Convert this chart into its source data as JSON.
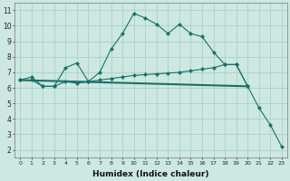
{
  "background_color": "#cce8e0",
  "grid_color": "#aacfc8",
  "line_color": "#1a7068",
  "xlabel": "Humidex (Indice chaleur)",
  "xlim": [
    -0.5,
    23.5
  ],
  "ylim": [
    1.5,
    11.5
  ],
  "xticks": [
    0,
    1,
    2,
    3,
    4,
    5,
    6,
    7,
    8,
    9,
    10,
    11,
    12,
    13,
    14,
    15,
    16,
    17,
    18,
    19,
    20,
    21,
    22,
    23
  ],
  "yticks": [
    2,
    3,
    4,
    5,
    6,
    7,
    8,
    9,
    10,
    11
  ],
  "series1_x": [
    0,
    1,
    2,
    3,
    4,
    5,
    6,
    7,
    8,
    9,
    10,
    11,
    12,
    13,
    14,
    15,
    16,
    17,
    18,
    19,
    20,
    21,
    22,
    23
  ],
  "series1_y": [
    6.5,
    6.7,
    6.1,
    6.1,
    7.3,
    7.6,
    6.4,
    7.0,
    8.5,
    9.5,
    10.8,
    10.5,
    10.1,
    9.5,
    10.1,
    9.5,
    9.3,
    8.3,
    7.5,
    7.5,
    6.1,
    4.7,
    3.6,
    2.2
  ],
  "series2_x": [
    0,
    1,
    2,
    3,
    4,
    5,
    6,
    7,
    8,
    9,
    10,
    11,
    12,
    13,
    14,
    15,
    16,
    17,
    18,
    19,
    20
  ],
  "series2_y": [
    6.5,
    6.5,
    6.1,
    6.1,
    6.4,
    6.3,
    6.4,
    6.5,
    6.6,
    6.7,
    6.8,
    6.85,
    6.9,
    6.95,
    7.0,
    7.1,
    7.2,
    7.3,
    7.5,
    7.5,
    6.1
  ],
  "series3_x": [
    0,
    20
  ],
  "series3_y": [
    6.5,
    6.1
  ]
}
